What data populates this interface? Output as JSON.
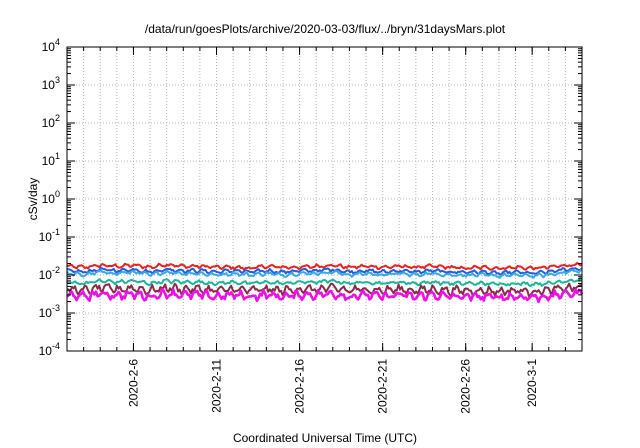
{
  "chart_data": {
    "type": "line",
    "title": "/data/run/goesPlots/archive/2020-03-03/flux/../bryn/31daysMars.plot",
    "xlabel": "Coordinated Universal Time (UTC)",
    "ylabel": "cSv/day",
    "y_scale": "log",
    "ylim": [
      0.0001,
      10000
    ],
    "xlim": [
      "2020-02-02",
      "2020-03-04"
    ],
    "grid": true,
    "legend": "none",
    "y_ticks": [
      {
        "base": "10",
        "exp": "-4"
      },
      {
        "base": "10",
        "exp": "-3"
      },
      {
        "base": "10",
        "exp": "-2"
      },
      {
        "base": "10",
        "exp": "-1"
      },
      {
        "base": "10",
        "exp": "0"
      },
      {
        "base": "10",
        "exp": "1"
      },
      {
        "base": "10",
        "exp": "2"
      },
      {
        "base": "10",
        "exp": "3"
      },
      {
        "base": "10",
        "exp": "4"
      }
    ],
    "x_ticks": [
      {
        "date": "2020-02-06",
        "label": "2020-2-6"
      },
      {
        "date": "2020-02-11",
        "label": "2020-2-11"
      },
      {
        "date": "2020-02-16",
        "label": "2020-2-16"
      },
      {
        "date": "2020-02-21",
        "label": "2020-2-21"
      },
      {
        "date": "2020-02-26",
        "label": "2020-2-26"
      },
      {
        "date": "2020-03-01",
        "label": "2020-3-1"
      }
    ],
    "x": [
      "2020-02-02",
      "2020-02-03",
      "2020-02-04",
      "2020-02-05",
      "2020-02-06",
      "2020-02-07",
      "2020-02-08",
      "2020-02-09",
      "2020-02-10",
      "2020-02-11",
      "2020-02-12",
      "2020-02-13",
      "2020-02-14",
      "2020-02-15",
      "2020-02-16",
      "2020-02-17",
      "2020-02-18",
      "2020-02-19",
      "2020-02-20",
      "2020-02-21",
      "2020-02-22",
      "2020-02-23",
      "2020-02-24",
      "2020-02-25",
      "2020-02-26",
      "2020-02-27",
      "2020-02-28",
      "2020-02-29",
      "2020-03-01",
      "2020-03-02",
      "2020-03-03",
      "2020-03-04"
    ],
    "series": [
      {
        "color": "#e8221d",
        "values": [
          0.017,
          0.016,
          0.018,
          0.017,
          0.018,
          0.016,
          0.019,
          0.017,
          0.017,
          0.016,
          0.016,
          0.015,
          0.017,
          0.016,
          0.016,
          0.017,
          0.018,
          0.016,
          0.017,
          0.016,
          0.017,
          0.016,
          0.017,
          0.016,
          0.015,
          0.016,
          0.015,
          0.016,
          0.015,
          0.016,
          0.018,
          0.019
        ]
      },
      {
        "color": "#1f5fe0",
        "values": [
          0.013,
          0.012,
          0.014,
          0.013,
          0.014,
          0.012,
          0.014,
          0.013,
          0.013,
          0.012,
          0.013,
          0.012,
          0.013,
          0.012,
          0.013,
          0.013,
          0.014,
          0.012,
          0.013,
          0.012,
          0.013,
          0.012,
          0.013,
          0.012,
          0.012,
          0.012,
          0.011,
          0.012,
          0.011,
          0.012,
          0.014,
          0.015
        ]
      },
      {
        "color": "#3aa7e8",
        "values": [
          0.011,
          0.01,
          0.012,
          0.011,
          0.012,
          0.01,
          0.012,
          0.011,
          0.011,
          0.01,
          0.011,
          0.01,
          0.011,
          0.01,
          0.011,
          0.011,
          0.012,
          0.01,
          0.011,
          0.01,
          0.011,
          0.01,
          0.011,
          0.01,
          0.01,
          0.01,
          0.0095,
          0.01,
          0.0095,
          0.01,
          0.012,
          0.013
        ]
      },
      {
        "color": "#19b79a",
        "values": [
          0.0065,
          0.006,
          0.007,
          0.0065,
          0.007,
          0.006,
          0.007,
          0.0065,
          0.0065,
          0.006,
          0.0065,
          0.006,
          0.0065,
          0.006,
          0.0065,
          0.0065,
          0.007,
          0.006,
          0.0065,
          0.006,
          0.0065,
          0.006,
          0.0065,
          0.006,
          0.006,
          0.006,
          0.0058,
          0.006,
          0.0058,
          0.006,
          0.007,
          0.0075
        ]
      },
      {
        "color": "#8b2a4a",
        "values": [
          0.0042,
          0.0039,
          0.0045,
          0.0042,
          0.0045,
          0.0039,
          0.0046,
          0.0042,
          0.0042,
          0.0039,
          0.0042,
          0.0039,
          0.0042,
          0.0039,
          0.0042,
          0.0042,
          0.0045,
          0.0039,
          0.0042,
          0.0039,
          0.0042,
          0.0039,
          0.0042,
          0.0039,
          0.0039,
          0.0039,
          0.0037,
          0.0039,
          0.0037,
          0.0039,
          0.0045,
          0.0048
        ]
      },
      {
        "color": "#ee10e8",
        "values": [
          0.003,
          0.0027,
          0.0032,
          0.0029,
          0.0031,
          0.0027,
          0.0033,
          0.003,
          0.003,
          0.0027,
          0.003,
          0.0027,
          0.003,
          0.0027,
          0.003,
          0.003,
          0.0032,
          0.0027,
          0.003,
          0.0027,
          0.003,
          0.0027,
          0.003,
          0.0027,
          0.0027,
          0.0027,
          0.0026,
          0.0027,
          0.0026,
          0.0027,
          0.0032,
          0.0034
        ]
      }
    ]
  }
}
